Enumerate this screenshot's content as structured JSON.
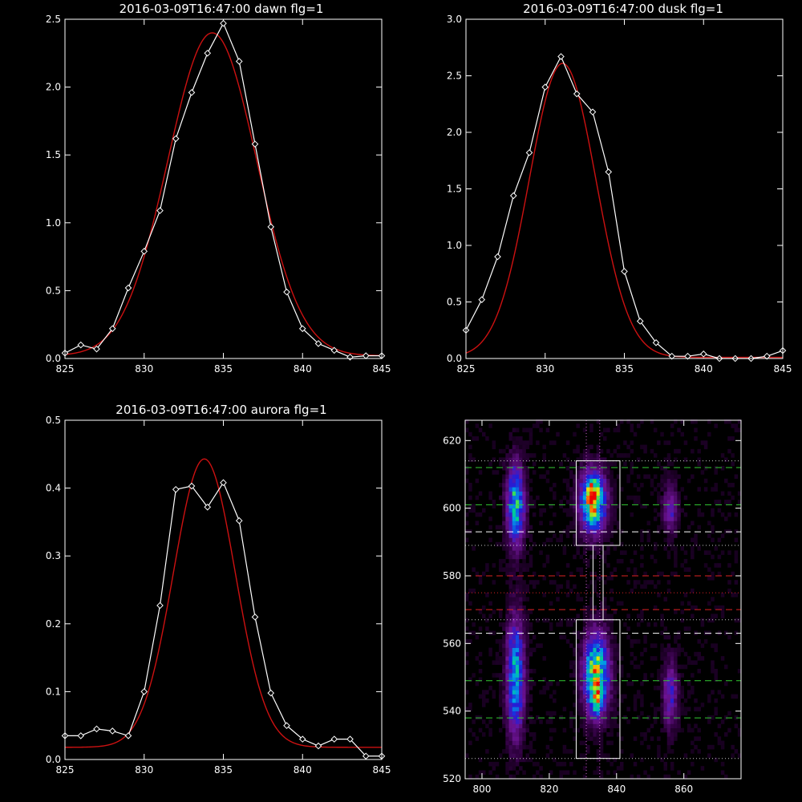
{
  "colors": {
    "background": "#000000",
    "axes": "#ffffff",
    "data_line": "#ffffff",
    "fit_line": "#cc1111",
    "guide_green": "#33cc33",
    "guide_red": "#dd2222",
    "guide_white": "#ffffff",
    "guide_dotted": "#c8c8c8",
    "guide_magenta": "#cc66cc"
  },
  "chart_data": [
    {
      "type": "line",
      "title": "2016-03-09T16:47:00 dawn flg=1",
      "xlabel": "",
      "ylabel": "",
      "xlim": [
        825,
        845
      ],
      "ylim": [
        0,
        2.5
      ],
      "xticks": [
        "825",
        "830",
        "835",
        "840",
        "845"
      ],
      "yticks": [
        "0.0",
        "0.5",
        "1.0",
        "1.5",
        "2.0",
        "2.5"
      ],
      "series": [
        {
          "marker": "diamond",
          "x": [
            825,
            826,
            827,
            828,
            829,
            830,
            831,
            832,
            833,
            834,
            835,
            836,
            837,
            838,
            839,
            840,
            841,
            842,
            843,
            844,
            845
          ],
          "y": [
            0.04,
            0.1,
            0.07,
            0.22,
            0.52,
            0.79,
            1.09,
            1.62,
            1.96,
            2.25,
            2.47,
            2.19,
            1.58,
            0.97,
            0.49,
            0.22,
            0.11,
            0.06,
            0.01,
            0.02,
            0.02
          ]
        },
        {
          "marker": "none",
          "fit": {
            "amplitude": 2.38,
            "center": 834.3,
            "sigma": 2.8,
            "offset": 0.02
          }
        }
      ],
      "grid": false
    },
    {
      "type": "line",
      "title": "2016-03-09T16:47:00 dusk flg=1",
      "xlabel": "",
      "ylabel": "",
      "xlim": [
        825,
        845
      ],
      "ylim": [
        0,
        3.0
      ],
      "xticks": [
        "825",
        "830",
        "835",
        "840",
        "845"
      ],
      "yticks": [
        "0.0",
        "0.5",
        "1.0",
        "1.5",
        "2.0",
        "2.5",
        "3.0"
      ],
      "series": [
        {
          "marker": "diamond",
          "x": [
            825,
            826,
            827,
            828,
            829,
            830,
            831,
            832,
            833,
            834,
            835,
            836,
            837,
            838,
            839,
            840,
            841,
            842,
            843,
            844,
            845
          ],
          "y": [
            0.25,
            0.52,
            0.9,
            1.44,
            1.82,
            2.4,
            2.67,
            2.34,
            2.18,
            1.65,
            0.77,
            0.33,
            0.14,
            0.02,
            0.02,
            0.04,
            0.0,
            -0.01,
            -0.01,
            0.02,
            0.07
          ]
        },
        {
          "marker": "none",
          "fit": {
            "amplitude": 2.6,
            "center": 831.1,
            "sigma": 2.1,
            "offset": 0.01
          }
        }
      ],
      "grid": false
    },
    {
      "type": "line",
      "title": "2016-03-09T16:47:00 aurora flg=1",
      "xlabel": "",
      "ylabel": "",
      "xlim": [
        825,
        845
      ],
      "ylim": [
        0,
        0.5
      ],
      "xticks": [
        "825",
        "830",
        "835",
        "840",
        "845"
      ],
      "yticks": [
        "0.0",
        "0.1",
        "0.2",
        "0.3",
        "0.4",
        "0.5"
      ],
      "series": [
        {
          "marker": "diamond",
          "x": [
            825,
            826,
            827,
            828,
            829,
            830,
            831,
            832,
            833,
            834,
            835,
            836,
            837,
            838,
            839,
            840,
            841,
            842,
            843,
            844,
            845
          ],
          "y": [
            0.035,
            0.035,
            0.045,
            0.042,
            0.035,
            0.1,
            0.227,
            0.398,
            0.403,
            0.372,
            0.408,
            0.352,
            0.21,
            0.098,
            0.05,
            0.03,
            0.02,
            0.03,
            0.03,
            0.005,
            0.005
          ]
        },
        {
          "marker": "none",
          "fit": {
            "amplitude": 0.425,
            "center": 833.8,
            "sigma": 1.95,
            "offset": 0.018
          }
        }
      ],
      "grid": false
    },
    {
      "type": "heatmap",
      "title": "",
      "xlabel": "",
      "ylabel": "",
      "xlim": [
        795,
        877
      ],
      "ylim": [
        520,
        626
      ],
      "xticks": [
        "800",
        "820",
        "840",
        "860"
      ],
      "yticks": [
        "520",
        "540",
        "560",
        "580",
        "600",
        "620"
      ],
      "colormap": "rainbow-on-black",
      "sources": [
        {
          "x": 810,
          "y": 601,
          "sx": 1.8,
          "sy": 8,
          "peak": 0.6
        },
        {
          "x": 810,
          "y": 550,
          "sx": 1.8,
          "sy": 12,
          "peak": 0.55
        },
        {
          "x": 833,
          "y": 602,
          "sx": 2.6,
          "sy": 6,
          "peak": 0.85
        },
        {
          "x": 833,
          "y": 605,
          "sx": 1.0,
          "sy": 2,
          "peak": 0.3
        },
        {
          "x": 834,
          "y": 551,
          "sx": 2.6,
          "sy": 8,
          "peak": 0.75
        },
        {
          "x": 834,
          "y": 544,
          "sx": 1.2,
          "sy": 3,
          "peak": 0.35
        },
        {
          "x": 856,
          "y": 600,
          "sx": 1.5,
          "sy": 5,
          "peak": 0.28
        },
        {
          "x": 856,
          "y": 545,
          "sx": 1.5,
          "sy": 7,
          "peak": 0.3
        }
      ],
      "boxes": [
        {
          "x": [
            828,
            841
          ],
          "y": [
            589,
            614
          ]
        },
        {
          "x": [
            828,
            841
          ],
          "y": [
            526,
            567
          ]
        },
        {
          "x": [
            833,
            836
          ],
          "y": [
            567,
            589
          ]
        }
      ],
      "hlines": [
        {
          "y": 612,
          "style": "dash",
          "color": "guide_green"
        },
        {
          "y": 601,
          "style": "dash",
          "color": "guide_green"
        },
        {
          "y": 549,
          "style": "dash",
          "color": "guide_green"
        },
        {
          "y": 538,
          "style": "dash",
          "color": "guide_green"
        },
        {
          "y": 593,
          "style": "dash",
          "color": "guide_white"
        },
        {
          "y": 563,
          "style": "dash",
          "color": "guide_white"
        },
        {
          "y": 580,
          "style": "dash",
          "color": "guide_red"
        },
        {
          "y": 570,
          "style": "dash",
          "color": "guide_red"
        },
        {
          "y": 614,
          "style": "dot",
          "color": "guide_dotted"
        },
        {
          "y": 589,
          "style": "dot",
          "color": "guide_dotted"
        },
        {
          "y": 575,
          "style": "dot",
          "color": "guide_red"
        },
        {
          "y": 567,
          "style": "dot",
          "color": "guide_dotted"
        },
        {
          "y": 526,
          "style": "dot",
          "color": "guide_dotted"
        }
      ],
      "vlines": [
        {
          "x": 831,
          "style": "dot",
          "color": "guide_magenta"
        },
        {
          "x": 835,
          "style": "dot",
          "color": "guide_magenta"
        }
      ]
    }
  ]
}
